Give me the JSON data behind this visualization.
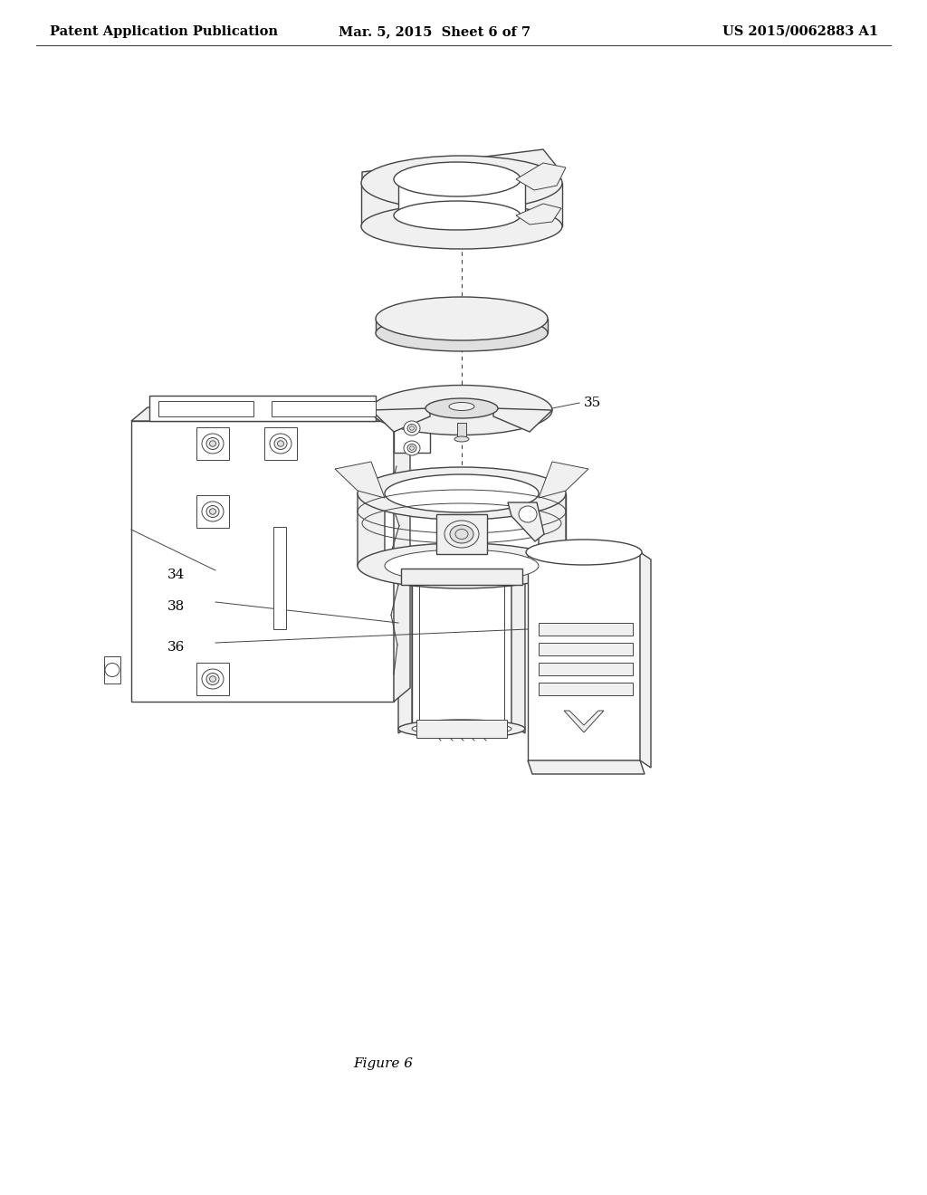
{
  "background_color": "#ffffff",
  "header_left": "Patent Application Publication",
  "header_center": "Mar. 5, 2015  Sheet 6 of 7",
  "header_right": "US 2015/0062883 A1",
  "figure_caption": "Figure 6",
  "label_34": "34",
  "label_35": "35",
  "label_36": "36",
  "label_38": "38",
  "line_color": "#444444",
  "light_fill": "#f0f0f0",
  "mid_fill": "#e0e0e0",
  "white_fill": "#ffffff"
}
